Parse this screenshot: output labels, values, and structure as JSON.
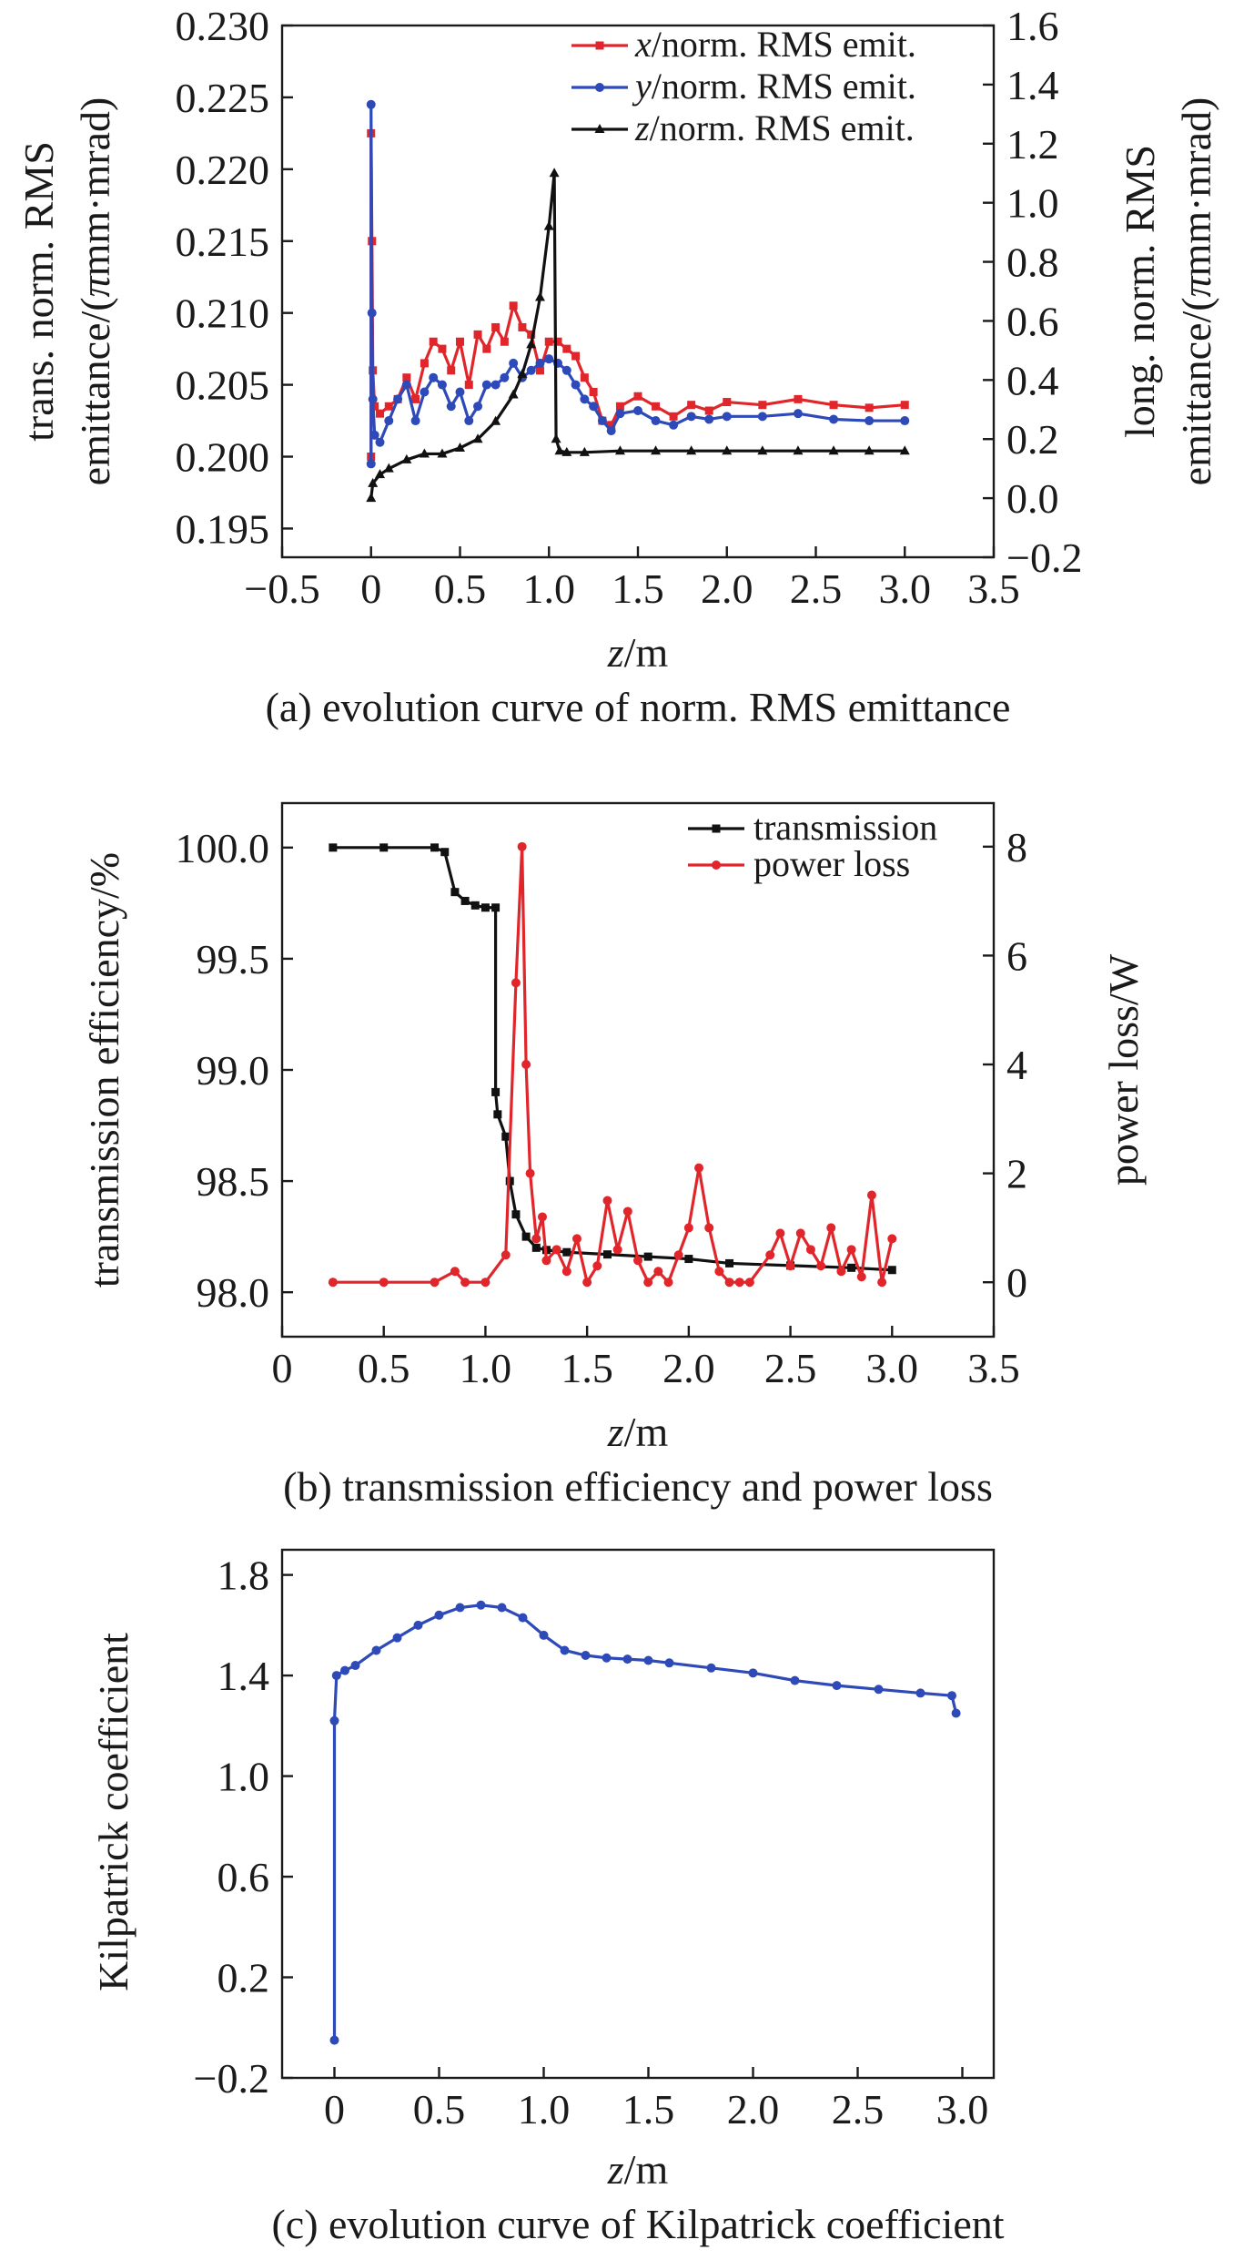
{
  "chart_data": [
    {
      "type": "line",
      "caption": "(a) evolution curve of norm. RMS emittance",
      "xlabel": "z/m",
      "ylabel_lines": [
        "trans. norm. RMS",
        "emittance/(πmm·mrad)"
      ],
      "y2label_lines": [
        "long. norm. RMS",
        "emittance/(πmm·mrad)"
      ],
      "xlim": [
        -0.5,
        3.5
      ],
      "ylim": [
        0.193,
        0.23
      ],
      "y2lim": [
        -0.2,
        1.6
      ],
      "xticks": [
        "−0.5",
        "0",
        "0.5",
        "1.0",
        "1.5",
        "2.0",
        "2.5",
        "3.0",
        "3.5"
      ],
      "yticks": [
        "0.195",
        "0.200",
        "0.205",
        "0.210",
        "0.215",
        "0.220",
        "0.225",
        "0.230"
      ],
      "y2ticks": [
        "−0.2",
        "0.0",
        "0.2",
        "0.4",
        "0.6",
        "0.8",
        "1.0",
        "1.2",
        "1.4",
        "1.6"
      ],
      "series": [
        {
          "name": "x/norm. RMS emit.",
          "var": "x",
          "rest": "/norm. RMS emit.",
          "color": "#e0252b",
          "marker": "square",
          "axis": "left",
          "x": [
            0.0,
            0.0,
            0.005,
            0.01,
            0.02,
            0.05,
            0.1,
            0.15,
            0.2,
            0.25,
            0.3,
            0.35,
            0.4,
            0.45,
            0.5,
            0.55,
            0.6,
            0.65,
            0.7,
            0.75,
            0.8,
            0.85,
            0.9,
            0.95,
            1.0,
            1.05,
            1.1,
            1.15,
            1.2,
            1.25,
            1.3,
            1.35,
            1.4,
            1.5,
            1.6,
            1.7,
            1.8,
            1.9,
            2.0,
            2.2,
            2.4,
            2.6,
            2.8,
            3.0
          ],
          "y": [
            0.2,
            0.2225,
            0.215,
            0.206,
            0.2035,
            0.203,
            0.2035,
            0.204,
            0.2055,
            0.204,
            0.2065,
            0.208,
            0.2075,
            0.206,
            0.208,
            0.205,
            0.2085,
            0.2075,
            0.209,
            0.208,
            0.2105,
            0.209,
            0.2085,
            0.206,
            0.208,
            0.208,
            0.2075,
            0.207,
            0.2055,
            0.2045,
            0.2025,
            0.2022,
            0.2035,
            0.2042,
            0.2035,
            0.2028,
            0.2036,
            0.2032,
            0.2038,
            0.2036,
            0.204,
            0.2036,
            0.2034,
            0.2036
          ]
        },
        {
          "name": "y/norm. RMS emit.",
          "var": "y",
          "rest": "/norm. RMS emit.",
          "color": "#2e49b8",
          "marker": "circle",
          "axis": "left",
          "x": [
            0.0,
            0.0,
            0.005,
            0.01,
            0.02,
            0.05,
            0.1,
            0.15,
            0.2,
            0.25,
            0.3,
            0.35,
            0.4,
            0.45,
            0.5,
            0.55,
            0.6,
            0.65,
            0.7,
            0.75,
            0.8,
            0.85,
            0.9,
            0.95,
            1.0,
            1.05,
            1.1,
            1.15,
            1.2,
            1.25,
            1.3,
            1.35,
            1.4,
            1.5,
            1.6,
            1.7,
            1.8,
            1.9,
            2.0,
            2.2,
            2.4,
            2.6,
            2.8,
            3.0
          ],
          "y": [
            0.1995,
            0.2245,
            0.21,
            0.204,
            0.2015,
            0.201,
            0.2025,
            0.204,
            0.205,
            0.2025,
            0.2045,
            0.2055,
            0.205,
            0.2035,
            0.2045,
            0.2025,
            0.2035,
            0.205,
            0.205,
            0.2055,
            0.2065,
            0.2055,
            0.206,
            0.2065,
            0.2068,
            0.2065,
            0.206,
            0.205,
            0.204,
            0.2035,
            0.2025,
            0.2018,
            0.203,
            0.2032,
            0.2025,
            0.2022,
            0.2028,
            0.2026,
            0.2028,
            0.2028,
            0.203,
            0.2026,
            0.2025,
            0.2025
          ]
        },
        {
          "name": "z/norm. RMS emit.",
          "var": "z",
          "rest": "/norm. RMS emit.",
          "color": "#111111",
          "marker": "triangle",
          "axis": "right",
          "x": [
            0.0,
            0.01,
            0.05,
            0.1,
            0.2,
            0.3,
            0.4,
            0.5,
            0.6,
            0.7,
            0.8,
            0.85,
            0.9,
            0.95,
            1.0,
            1.03,
            1.04,
            1.06,
            1.1,
            1.2,
            1.4,
            1.6,
            1.8,
            2.0,
            2.2,
            2.4,
            2.6,
            2.8,
            3.0
          ],
          "y": [
            0.0,
            0.05,
            0.08,
            0.1,
            0.13,
            0.15,
            0.15,
            0.17,
            0.2,
            0.26,
            0.35,
            0.42,
            0.52,
            0.68,
            0.92,
            1.1,
            0.2,
            0.16,
            0.155,
            0.155,
            0.16,
            0.16,
            0.16,
            0.16,
            0.16,
            0.16,
            0.16,
            0.16,
            0.16
          ]
        }
      ]
    },
    {
      "type": "line",
      "caption": "(b) transmission efficiency and power loss",
      "xlabel": "z/m",
      "ylabel": "transmission efficiency/%",
      "y2label": "power loss/W",
      "xlim": [
        0,
        3.5
      ],
      "ylim": [
        97.8,
        100.2
      ],
      "y2lim": [
        -1,
        8.8
      ],
      "xticks": [
        "0",
        "0.5",
        "1.0",
        "1.5",
        "2.0",
        "2.5",
        "3.0",
        "3.5"
      ],
      "yticks": [
        "98.0",
        "98.5",
        "99.0",
        "99.5",
        "100.0"
      ],
      "y2ticks": [
        "0",
        "2",
        "4",
        "6",
        "8"
      ],
      "series": [
        {
          "name": "transmission",
          "color": "#111111",
          "marker": "square",
          "axis": "left",
          "x": [
            0.25,
            0.5,
            0.75,
            0.8,
            0.85,
            0.9,
            0.95,
            1.0,
            1.05,
            1.05,
            1.06,
            1.1,
            1.12,
            1.15,
            1.2,
            1.25,
            1.3,
            1.4,
            1.6,
            1.8,
            2.0,
            2.2,
            2.5,
            2.8,
            3.0
          ],
          "y": [
            100.0,
            100.0,
            100.0,
            99.98,
            99.8,
            99.76,
            99.74,
            99.73,
            99.73,
            98.9,
            98.8,
            98.7,
            98.5,
            98.35,
            98.25,
            98.2,
            98.19,
            98.18,
            98.17,
            98.16,
            98.15,
            98.13,
            98.12,
            98.11,
            98.1
          ]
        },
        {
          "name": "power loss",
          "color": "#e0252b",
          "marker": "circle",
          "axis": "right",
          "x": [
            0.25,
            0.5,
            0.75,
            0.85,
            0.9,
            1.0,
            1.1,
            1.15,
            1.18,
            1.2,
            1.22,
            1.25,
            1.28,
            1.3,
            1.35,
            1.4,
            1.45,
            1.5,
            1.55,
            1.6,
            1.65,
            1.7,
            1.75,
            1.8,
            1.85,
            1.9,
            1.95,
            2.0,
            2.05,
            2.1,
            2.15,
            2.2,
            2.25,
            2.3,
            2.4,
            2.45,
            2.5,
            2.55,
            2.6,
            2.65,
            2.7,
            2.75,
            2.8,
            2.85,
            2.9,
            2.95,
            3.0
          ],
          "y": [
            0.0,
            0.0,
            0.0,
            0.2,
            0.0,
            0.0,
            0.5,
            5.5,
            8.0,
            4.0,
            2.0,
            0.8,
            1.2,
            0.4,
            0.6,
            0.2,
            0.8,
            0.0,
            0.3,
            1.5,
            0.6,
            1.3,
            0.4,
            0.0,
            0.2,
            0.0,
            0.5,
            1.0,
            2.1,
            1.0,
            0.2,
            0.0,
            0.0,
            0.0,
            0.5,
            0.9,
            0.3,
            0.9,
            0.6,
            0.3,
            1.0,
            0.2,
            0.6,
            0.1,
            1.6,
            0.0,
            0.8
          ]
        }
      ]
    },
    {
      "type": "line",
      "caption": "(c) evolution curve of Kilpatrick coefficient",
      "xlabel": "z/m",
      "ylabel": "Kilpatrick coefficient",
      "xlim": [
        -0.25,
        3.15
      ],
      "ylim": [
        -0.2,
        1.9
      ],
      "xticks": [
        "0",
        "0.5",
        "1.0",
        "1.5",
        "2.0",
        "2.5",
        "3.0"
      ],
      "yticks": [
        "−0.2",
        "0.2",
        "0.6",
        "1.0",
        "1.4",
        "1.8"
      ],
      "series": [
        {
          "color": "#2e49b8",
          "marker": "circle",
          "axis": "left",
          "x": [
            0.0,
            0.0,
            0.01,
            0.05,
            0.1,
            0.2,
            0.3,
            0.4,
            0.5,
            0.6,
            0.7,
            0.8,
            0.9,
            1.0,
            1.1,
            1.2,
            1.3,
            1.4,
            1.5,
            1.6,
            1.8,
            2.0,
            2.2,
            2.4,
            2.6,
            2.8,
            2.95,
            2.97
          ],
          "y": [
            -0.05,
            1.22,
            1.4,
            1.42,
            1.44,
            1.5,
            1.55,
            1.6,
            1.64,
            1.67,
            1.68,
            1.67,
            1.63,
            1.56,
            1.5,
            1.48,
            1.47,
            1.465,
            1.46,
            1.45,
            1.43,
            1.41,
            1.38,
            1.36,
            1.345,
            1.33,
            1.32,
            1.25
          ]
        }
      ]
    }
  ]
}
